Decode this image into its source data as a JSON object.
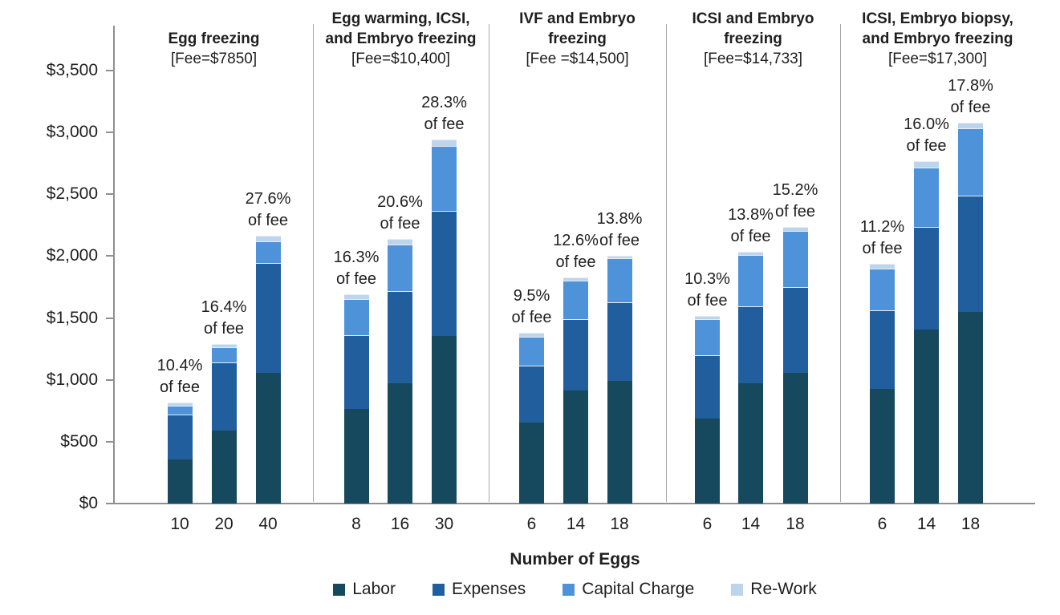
{
  "chart_data": {
    "type": "bar",
    "stacked": true,
    "title": "",
    "xlabel": "Number of Eggs",
    "ylabel": "",
    "ylim": [
      0,
      3700
    ],
    "grid": false,
    "legend_position": "bottom",
    "y_ticks": [
      "$0",
      "$500",
      "$1,000",
      "$1,500",
      "$2,000",
      "$2,500",
      "$3,000",
      "$3,500"
    ],
    "y_tick_values": [
      0,
      500,
      1000,
      1500,
      2000,
      2500,
      3000,
      3500
    ],
    "series_names": [
      "Labor",
      "Expenses",
      "Capital Charge",
      "Re-Work"
    ],
    "colors": {
      "Labor": "#17495e",
      "Expenses": "#215e9e",
      "Capital Charge": "#4e93d9",
      "Re-Work": "#bdd5ec"
    },
    "legend": [
      {
        "label": "Labor",
        "color": "#17495e"
      },
      {
        "label": "Expenses",
        "color": "#215e9e"
      },
      {
        "label": "Capital Charge",
        "color": "#4e93d9"
      },
      {
        "label": "Re-Work",
        "color": "#bdd5ec"
      }
    ],
    "panels": [
      {
        "title_lines": [
          "Egg freezing"
        ],
        "fee_line": "[Fee=$7850]",
        "fee": 7850,
        "bars": [
          {
            "eggs": "10",
            "pct": "10.4%",
            "pct_line2": "of fee",
            "total": 816,
            "values": {
              "Labor": 356,
              "Expenses": 363,
              "Capital Charge": 72,
              "Re-Work": 25
            }
          },
          {
            "eggs": "20",
            "pct": "16.4%",
            "pct_line2": "of fee",
            "total": 1287,
            "values": {
              "Labor": 590,
              "Expenses": 550,
              "Capital Charge": 124,
              "Re-Work": 23
            }
          },
          {
            "eggs": "40",
            "pct": "27.6%",
            "pct_line2": "of fee",
            "total": 2167,
            "values": {
              "Labor": 1056,
              "Expenses": 888,
              "Capital Charge": 175,
              "Re-Work": 48
            }
          }
        ]
      },
      {
        "title_lines": [
          "Egg warming, ICSI,",
          "and Embryo freezing"
        ],
        "fee_line": "[Fee=$10,400]",
        "fee": 10400,
        "bars": [
          {
            "eggs": "8",
            "pct": "16.3%",
            "pct_line2": "of fee",
            "total": 1695,
            "values": {
              "Labor": 765,
              "Expenses": 596,
              "Capital Charge": 291,
              "Re-Work": 43
            }
          },
          {
            "eggs": "16",
            "pct": "20.6%",
            "pct_line2": "of fee",
            "total": 2142,
            "values": {
              "Labor": 972,
              "Expenses": 745,
              "Capital Charge": 376,
              "Re-Work": 49
            }
          },
          {
            "eggs": "30",
            "pct": "28.3%",
            "pct_line2": "of fee",
            "total": 2943,
            "values": {
              "Labor": 1354,
              "Expenses": 1011,
              "Capital Charge": 525,
              "Re-Work": 53
            }
          }
        ]
      },
      {
        "title_lines": [
          "IVF and Embryo",
          "freezing"
        ],
        "fee_line": "[Fee =$14,500]",
        "fee": 14500,
        "bars": [
          {
            "eggs": "6",
            "pct": "9.5%",
            "pct_line2": "of fee",
            "total": 1378,
            "values": {
              "Labor": 654,
              "Expenses": 461,
              "Capital Charge": 233,
              "Re-Work": 30
            }
          },
          {
            "eggs": "14",
            "pct": "12.6%",
            "pct_line2": "of fee",
            "total": 1827,
            "values": {
              "Labor": 914,
              "Expenses": 576,
              "Capital Charge": 311,
              "Re-Work": 26
            }
          },
          {
            "eggs": "18",
            "pct": "13.8%",
            "pct_line2": "of fee",
            "total": 2001,
            "values": {
              "Labor": 991,
              "Expenses": 636,
              "Capital Charge": 356,
              "Re-Work": 18
            }
          }
        ]
      },
      {
        "title_lines": [
          "ICSI and Embryo",
          "freezing"
        ],
        "fee_line": "[Fee=$14,733]",
        "fee": 14733,
        "bars": [
          {
            "eggs": "6",
            "pct": "10.3%",
            "pct_line2": "of fee",
            "total": 1518,
            "values": {
              "Labor": 687,
              "Expenses": 512,
              "Capital Charge": 291,
              "Re-Work": 28
            }
          },
          {
            "eggs": "14",
            "pct": "13.8%",
            "pct_line2": "of fee",
            "total": 2033,
            "values": {
              "Labor": 972,
              "Expenses": 622,
              "Capital Charge": 415,
              "Re-Work": 24
            }
          },
          {
            "eggs": "18",
            "pct": "15.2%",
            "pct_line2": "of fee",
            "total": 2239,
            "values": {
              "Labor": 1056,
              "Expenses": 694,
              "Capital Charge": 453,
              "Re-Work": 36
            }
          }
        ]
      },
      {
        "title_lines": [
          "ICSI, Embryo biopsy,",
          "and Embryo freezing"
        ],
        "fee_line": "[Fee=$17,300]",
        "fee": 17300,
        "bars": [
          {
            "eggs": "6",
            "pct": "11.2%",
            "pct_line2": "of fee",
            "total": 1938,
            "values": {
              "Labor": 927,
              "Expenses": 635,
              "Capital Charge": 337,
              "Re-Work": 39
            }
          },
          {
            "eggs": "14",
            "pct": "16.0%",
            "pct_line2": "of fee",
            "total": 2768,
            "values": {
              "Labor": 1406,
              "Expenses": 830,
              "Capital Charge": 479,
              "Re-Work": 53
            }
          },
          {
            "eggs": "18",
            "pct": "17.8%",
            "pct_line2": "of fee",
            "total": 3079,
            "values": {
              "Labor": 1549,
              "Expenses": 940,
              "Capital Charge": 544,
              "Re-Work": 46
            }
          }
        ]
      }
    ]
  }
}
